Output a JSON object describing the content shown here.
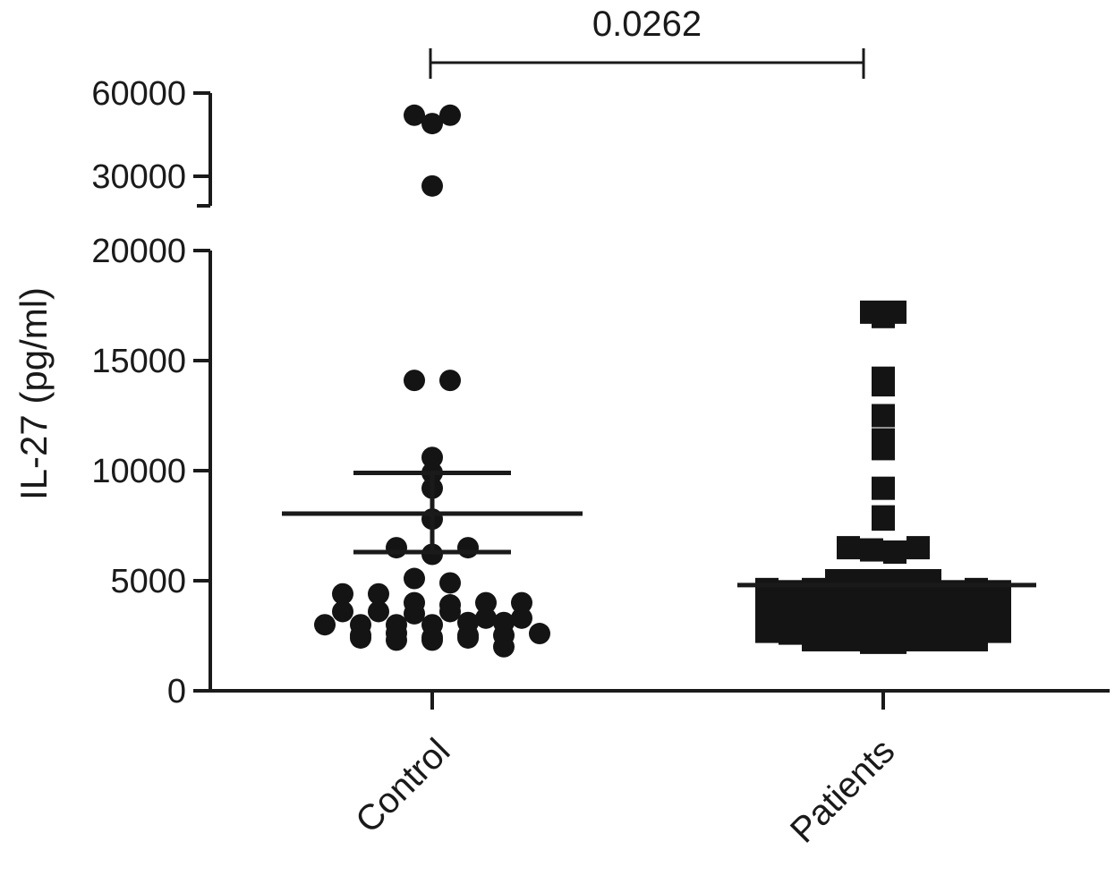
{
  "chart_data": {
    "type": "scatter",
    "ylabel": "IL-27 (pg/ml)",
    "categories": [
      "Control",
      "Patients"
    ],
    "y_axis": {
      "lower_segment": {
        "range": [
          0,
          20000
        ],
        "ticks": [
          "0",
          "5000",
          "10000",
          "15000",
          "20000"
        ]
      },
      "upper_segment": {
        "range": [
          25000,
          60000
        ],
        "ticks": [
          "30000",
          "60000"
        ]
      },
      "broken": true
    },
    "significance": {
      "label": "0.0262",
      "between": [
        "Control",
        "Patients"
      ]
    },
    "series": [
      {
        "category": "Control",
        "marker": "circle",
        "mean": 8050,
        "sem_low": 6300,
        "sem_high": 9900,
        "values": [
          52000,
          49000,
          52000,
          26500,
          14100,
          14100,
          10600,
          9900,
          9200,
          7800,
          6500,
          6200,
          6500,
          5100,
          4900,
          4400,
          4400,
          4000,
          3900,
          3600,
          3600,
          4000,
          3500,
          4000,
          3600,
          3000,
          3000,
          3300,
          3000,
          3300,
          3000,
          3100,
          3100,
          2600,
          2600,
          2700,
          2400,
          2300,
          2500,
          2300,
          2400,
          2600,
          2600,
          2000
        ]
      },
      {
        "category": "Patients",
        "marker": "square",
        "mean": 4800,
        "values": [
          17200,
          17000,
          17200,
          14200,
          13900,
          12500,
          11400,
          11000,
          9200,
          7800,
          7900,
          6500,
          6400,
          6300,
          6500,
          5000,
          5000,
          5000,
          5000,
          4900,
          5000,
          4900,
          4600,
          4500,
          4600,
          4500,
          4600,
          4500,
          4500,
          4600,
          4500,
          4600,
          4500,
          4000,
          4000,
          4000,
          4000,
          4000,
          4000,
          4000,
          4000,
          4000,
          4000,
          4000,
          3500,
          3500,
          3500,
          3500,
          3500,
          3500,
          3500,
          3500,
          3500,
          3500,
          3500,
          3000,
          3000,
          3000,
          3000,
          3000,
          3000,
          3000,
          3000,
          3000,
          3000,
          3000,
          3000,
          2700,
          2700,
          2700,
          2700,
          2700,
          2700,
          2700,
          2700,
          2700,
          2700,
          2700,
          2700,
          2400,
          2400,
          2400,
          2400,
          2400,
          2400,
          2400,
          2400,
          2200,
          2200
        ]
      }
    ],
    "grid": false,
    "legend": "none"
  }
}
